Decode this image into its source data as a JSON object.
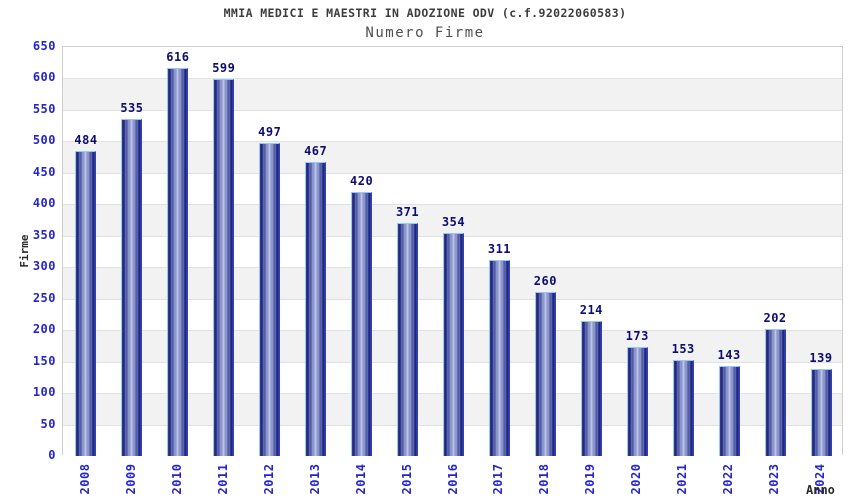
{
  "chart_data": {
    "type": "bar",
    "title": "MMIA MEDICI E MAESTRI IN ADOZIONE ODV (c.f.92022060583)",
    "subtitle": "Numero Firme",
    "xlabel": "Anno",
    "ylabel": "Firme",
    "categories": [
      "2008",
      "2009",
      "2010",
      "2011",
      "2012",
      "2013",
      "2014",
      "2015",
      "2016",
      "2017",
      "2018",
      "2019",
      "2020",
      "2021",
      "2022",
      "2023",
      "2024"
    ],
    "values": [
      484,
      535,
      616,
      599,
      497,
      467,
      420,
      371,
      354,
      311,
      260,
      214,
      173,
      153,
      143,
      202,
      139
    ],
    "ylim": [
      0,
      650
    ],
    "ytick_step": 50,
    "grid": true,
    "legend_position": "none",
    "bands_alternating": true,
    "colors": {
      "bar_dark": "#0d0d68",
      "bar_mid": "#5a65ae",
      "bar_mid_light": "#96a0d2",
      "bar_light": "#b6bfe6",
      "bar_border_light": "#93c9f3",
      "bar_border_right": "#2b43c8",
      "tick_label": "#2525cd",
      "value_label": "#0d0d70",
      "band_alt": "#f2f2f2",
      "gridline": "#e1e1e1",
      "plot_border": "#cfcfcf",
      "title": "#3c3c3c",
      "subtitle": "#4f4f4f",
      "axis_title": "#2b2b2b"
    }
  }
}
